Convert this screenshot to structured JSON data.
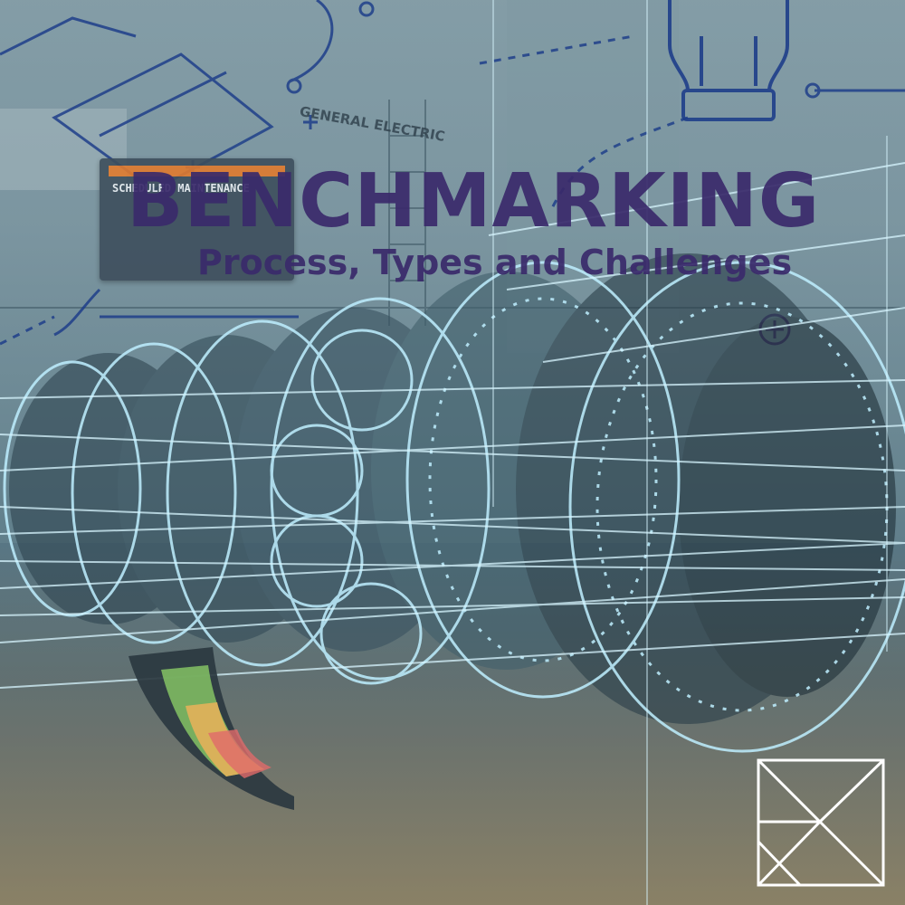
{
  "headline": {
    "title": "BENCHMARKING",
    "subtitle": "Process, Types and Challenges"
  },
  "background_labels": {
    "sign_text": "SCHEDULED MAINTENANCE",
    "machine_brand": "GENERAL ELECTRIC"
  },
  "colors": {
    "title": "#3a2a6b",
    "wireframe": "#bfefff",
    "blueprint": "#1f3f8a",
    "sign_accent": "#e07a2e",
    "logo_stroke": "#ffffff"
  },
  "icons": {
    "logo": "stylized-letter-r-logo-icon",
    "lightbulb": "lightbulb-outline-icon",
    "plus": "plus-circle-icon"
  }
}
